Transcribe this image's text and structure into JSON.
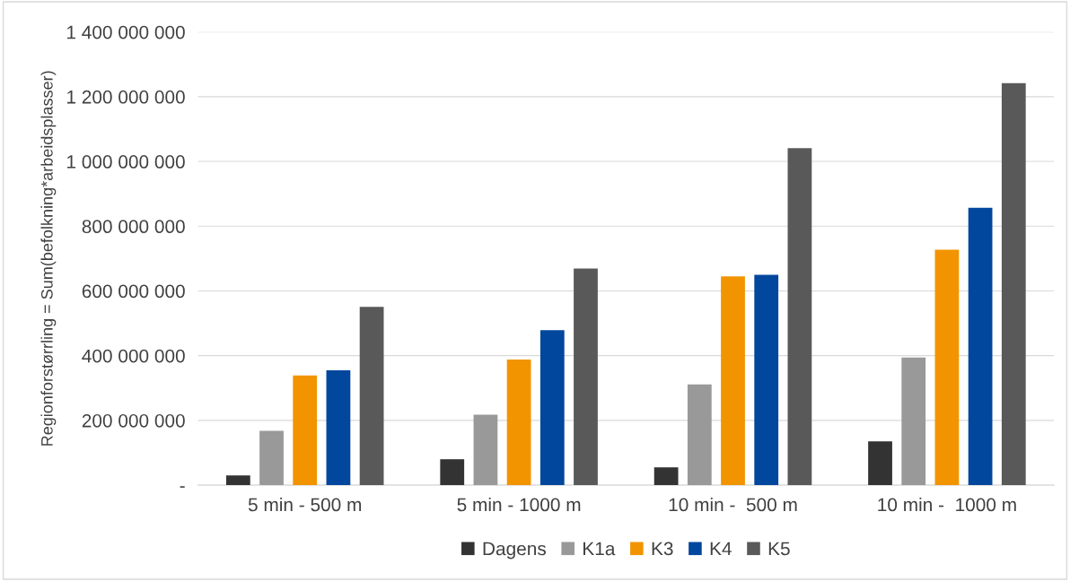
{
  "chart_data": {
    "type": "bar",
    "ylabel": "Regionforstørrling = Sum(befolkning*arbeidsplasser)",
    "categories": [
      "5 min - 500 m",
      "5 min - 1000 m",
      "10 min -  500 m",
      "10 min -  1000 m"
    ],
    "series": [
      {
        "name": "Dagens",
        "color": "#333333",
        "values": [
          30000000,
          80000000,
          55000000,
          135000000
        ]
      },
      {
        "name": "K1a",
        "color": "#999999",
        "values": [
          168000000,
          218000000,
          311000000,
          394000000
        ]
      },
      {
        "name": "K3",
        "color": "#f29400",
        "values": [
          339000000,
          388000000,
          645000000,
          727000000
        ]
      },
      {
        "name": "K4",
        "color": "#00479d",
        "values": [
          355000000,
          479000000,
          650000000,
          857000000
        ]
      },
      {
        "name": "K5",
        "color": "#595959",
        "values": [
          551000000,
          669000000,
          1041000000,
          1242000000
        ]
      }
    ],
    "ylim": [
      0,
      1400000000
    ],
    "yticks": [
      {
        "value": 0,
        "label": "-"
      },
      {
        "value": 200000000,
        "label": "200 000 000"
      },
      {
        "value": 400000000,
        "label": "400 000 000"
      },
      {
        "value": 600000000,
        "label": "600 000 000"
      },
      {
        "value": 800000000,
        "label": "800 000 000"
      },
      {
        "value": 1000000000,
        "label": "1 000 000 000"
      },
      {
        "value": 1200000000,
        "label": "1 200 000 000"
      },
      {
        "value": 1400000000,
        "label": "1 400 000 000"
      }
    ],
    "grid": "y",
    "legend": "bottom"
  }
}
